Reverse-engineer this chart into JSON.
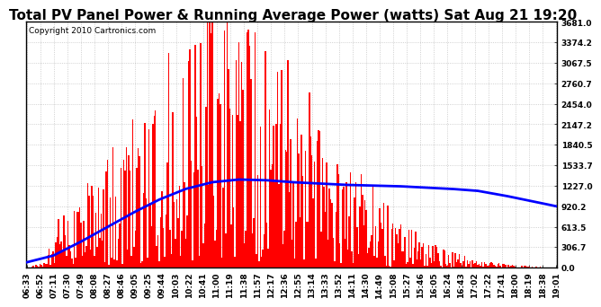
{
  "title": "Total PV Panel Power & Running Average Power (watts) Sat Aug 21 19:20",
  "copyright": "Copyright 2010 Cartronics.com",
  "background_color": "#ffffff",
  "plot_bg_color": "#ffffff",
  "bar_color": "#ff0000",
  "line_color": "#0000ff",
  "grid_color": "#888888",
  "ymin": 0.0,
  "ymax": 3681.0,
  "yticks": [
    0.0,
    306.7,
    613.5,
    920.2,
    1227.0,
    1533.7,
    1840.5,
    2147.2,
    2454.0,
    2760.7,
    3067.5,
    3374.2,
    3681.0
  ],
  "xtick_labels": [
    "06:33",
    "06:52",
    "07:11",
    "07:30",
    "07:49",
    "08:08",
    "08:27",
    "08:46",
    "09:05",
    "09:25",
    "09:44",
    "10:03",
    "10:22",
    "10:41",
    "11:00",
    "11:19",
    "11:38",
    "11:57",
    "12:17",
    "12:36",
    "12:55",
    "13:14",
    "13:33",
    "13:52",
    "14:11",
    "14:30",
    "14:49",
    "15:08",
    "15:27",
    "15:46",
    "16:05",
    "16:24",
    "16:43",
    "17:02",
    "17:22",
    "17:41",
    "18:00",
    "18:19",
    "18:38",
    "19:01"
  ],
  "n_bars": 400,
  "title_fontsize": 11,
  "copyright_fontsize": 6.5,
  "tick_fontsize": 6.5,
  "running_avg_points_x": [
    0,
    20,
    40,
    60,
    80,
    100,
    120,
    140,
    160,
    180,
    200,
    220,
    240,
    260,
    280,
    300,
    320,
    340,
    360,
    399
  ],
  "running_avg_points_y": [
    80,
    180,
    380,
    600,
    820,
    1020,
    1180,
    1280,
    1320,
    1310,
    1280,
    1260,
    1240,
    1230,
    1220,
    1200,
    1180,
    1150,
    1080,
    920
  ]
}
